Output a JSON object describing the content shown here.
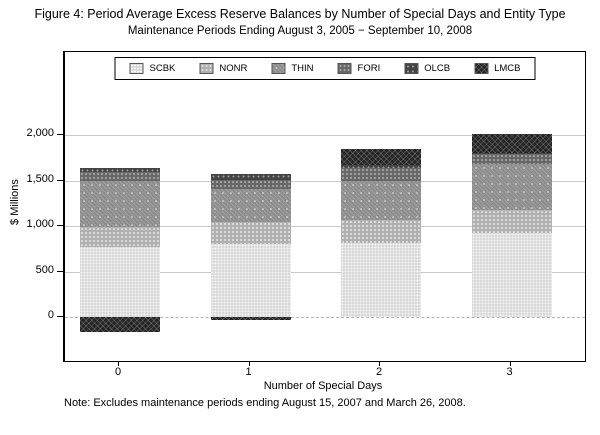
{
  "figure": {
    "title": "Figure 4: Period Average Excess Reserve Balances by Number of Special Days and Entity Type",
    "subtitle": "Maintenance Periods Ending August 3, 2005 − September 10, 2008",
    "note": "Note: Excludes maintenance periods ending August 15, 2007 and March 26, 2008."
  },
  "chart_data": {
    "type": "bar",
    "stacked": true,
    "title": "Figure 4: Period Average Excess Reserve Balances by Number of Special Days and Entity Type",
    "subtitle": "Maintenance Periods Ending August 3, 2005 − September 10, 2008",
    "xlabel": "Number of Special Days",
    "ylabel": "$ Millions",
    "categories": [
      "0",
      "1",
      "2",
      "3"
    ],
    "series": [
      {
        "name": "SCBK",
        "color": "#d9d9d9",
        "pattern": "fine-dots-light",
        "values": [
          770,
          800,
          820,
          920
        ]
      },
      {
        "name": "NONR",
        "color": "#b0b0b0",
        "pattern": "dots-light",
        "values": [
          220,
          250,
          250,
          260
        ]
      },
      {
        "name": "THIN",
        "color": "#8e8e8e",
        "pattern": "checker",
        "values": [
          510,
          365,
          425,
          500
        ]
      },
      {
        "name": "FORI",
        "color": "#686868",
        "pattern": "dots-medium",
        "values": [
          100,
          90,
          150,
          110
        ]
      },
      {
        "name": "OLCB",
        "color": "#444444",
        "pattern": "dots-dark",
        "values": [
          40,
          70,
          25,
          20
        ]
      },
      {
        "name": "LMCB",
        "color": "#252525",
        "pattern": "crosshatch",
        "values": [
          -170,
          -30,
          180,
          210
        ]
      }
    ],
    "yticks": [
      {
        "value": 0,
        "label": "0"
      },
      {
        "value": 500,
        "label": "500"
      },
      {
        "value": 1000,
        "label": "1,000"
      },
      {
        "value": 1500,
        "label": "1,500"
      },
      {
        "value": 2000,
        "label": "2,000"
      }
    ],
    "ylim": [
      -480,
      2920
    ],
    "grid": true,
    "zero_line": "dashed",
    "legend_position": "top-inside",
    "note": "Note: Excludes maintenance periods ending August 15, 2007 and March 26, 2008."
  }
}
